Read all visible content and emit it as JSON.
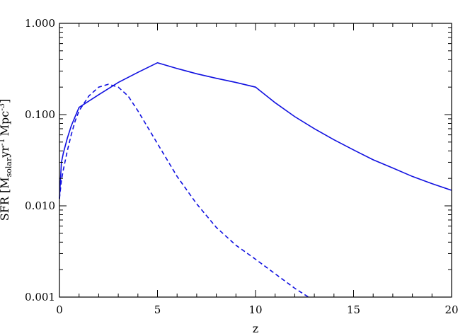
{
  "chart_data": {
    "type": "line",
    "title": "",
    "xlabel": "z",
    "ylabel": "SFR [M_solar yr^-1 Mpc^-3]",
    "ylabel_parts": {
      "main": "SFR [M",
      "sub": "solar",
      "mid1": "yr",
      "sup1": "-1",
      "mid2": "Mpc",
      "sup2": "-3",
      "end": "]"
    },
    "xlim": [
      0,
      20
    ],
    "ylim": [
      0.001,
      1.0
    ],
    "yscale": "log",
    "grid": false,
    "x_ticks": [
      0,
      5,
      10,
      15,
      20
    ],
    "x_tick_labels": [
      "0",
      "5",
      "10",
      "15",
      "20"
    ],
    "y_ticks": [
      0.001,
      0.01,
      0.1,
      1.0
    ],
    "y_tick_labels": [
      "0.001",
      "0.010",
      "0.100",
      "1.000"
    ],
    "color": "#1010e0",
    "series": [
      {
        "style": "solid",
        "x": [
          0.0,
          0.1,
          0.2,
          0.4,
          0.6,
          0.8,
          1.0,
          2.0,
          3.0,
          4.0,
          5.0,
          6.0,
          7.0,
          8.0,
          9.0,
          10.0,
          11.0,
          12.0,
          13.0,
          14.0,
          15.0,
          16.0,
          17.0,
          18.0,
          19.0,
          20.0
        ],
        "y": [
          0.012,
          0.03,
          0.038,
          0.055,
          0.075,
          0.095,
          0.12,
          0.165,
          0.225,
          0.29,
          0.37,
          0.32,
          0.28,
          0.25,
          0.225,
          0.2,
          0.135,
          0.095,
          0.07,
          0.053,
          0.041,
          0.032,
          0.026,
          0.021,
          0.0175,
          0.0148
        ]
      },
      {
        "style": "dashed",
        "x": [
          0.0,
          0.1,
          0.2,
          0.4,
          0.6,
          0.8,
          1.0,
          1.5,
          2.0,
          2.5,
          3.0,
          3.5,
          4.0,
          5.0,
          6.0,
          7.0,
          8.0,
          9.0,
          10.0,
          11.0,
          12.0,
          12.7
        ],
        "y": [
          0.012,
          0.019,
          0.025,
          0.04,
          0.06,
          0.085,
          0.11,
          0.16,
          0.2,
          0.215,
          0.2,
          0.16,
          0.11,
          0.048,
          0.021,
          0.0105,
          0.0058,
          0.0037,
          0.0026,
          0.0018,
          0.00125,
          0.001
        ]
      }
    ]
  }
}
